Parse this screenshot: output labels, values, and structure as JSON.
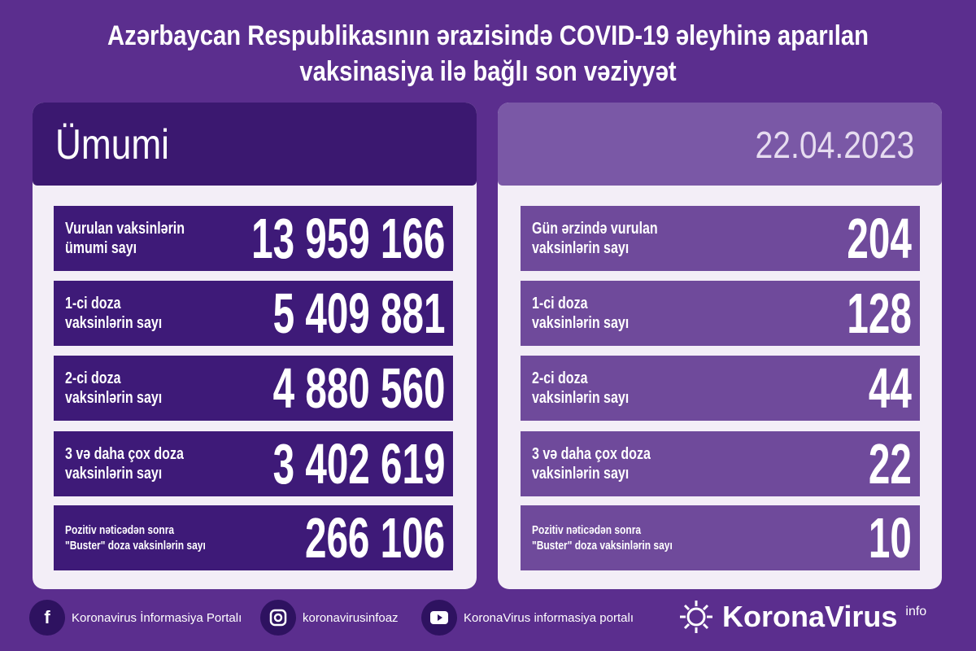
{
  "title": {
    "line1": "Azərbaycan Respublikasının ərazisində COVID-19 əleyhinə aparılan",
    "line2": "vaksinasiya ilə bağlı son vəziyyət"
  },
  "left": {
    "header": "Ümumi",
    "rows": [
      {
        "label": "Vurulan vaksinlərin\nümumi sayı",
        "value": "13 959 166"
      },
      {
        "label": "1-ci doza\nvaksinlərin sayı",
        "value": "5 409 881"
      },
      {
        "label": "2-ci doza\nvaksinlərin sayı",
        "value": "4 880 560"
      },
      {
        "label": "3 və daha çox doza\nvaksinlərin sayı",
        "value": "3 402 619"
      },
      {
        "label": "Pozitiv nəticədən sonra\n\"Buster\" doza vaksinlərin sayı",
        "value": "266 106"
      }
    ]
  },
  "right": {
    "header": "22.04.2023",
    "rows": [
      {
        "label": "Gün ərzində vurulan\nvaksinlərin sayı",
        "value": "204"
      },
      {
        "label": "1-ci doza\nvaksinlərin sayı",
        "value": "128"
      },
      {
        "label": "2-ci doza\nvaksinlərin sayı",
        "value": "44"
      },
      {
        "label": "3 və daha çox doza\nvaksinlərin sayı",
        "value": "22"
      },
      {
        "label": "Pozitiv nəticədən sonra\n\"Buster\" doza vaksinlərin sayı",
        "value": "10"
      }
    ]
  },
  "footer": {
    "facebook": "Koronavirus İnformasiya Portalı",
    "instagram": "koronavirusinfoaz",
    "youtube": "KoronaVirus informasiya portalı",
    "logo_name": "KoronaVirus",
    "logo_sup": "info"
  },
  "colors": {
    "background": "#5b2e8e",
    "left_row": "#3e1a78",
    "right_row": "#6f4a9b",
    "panel": "#f3eef7"
  }
}
